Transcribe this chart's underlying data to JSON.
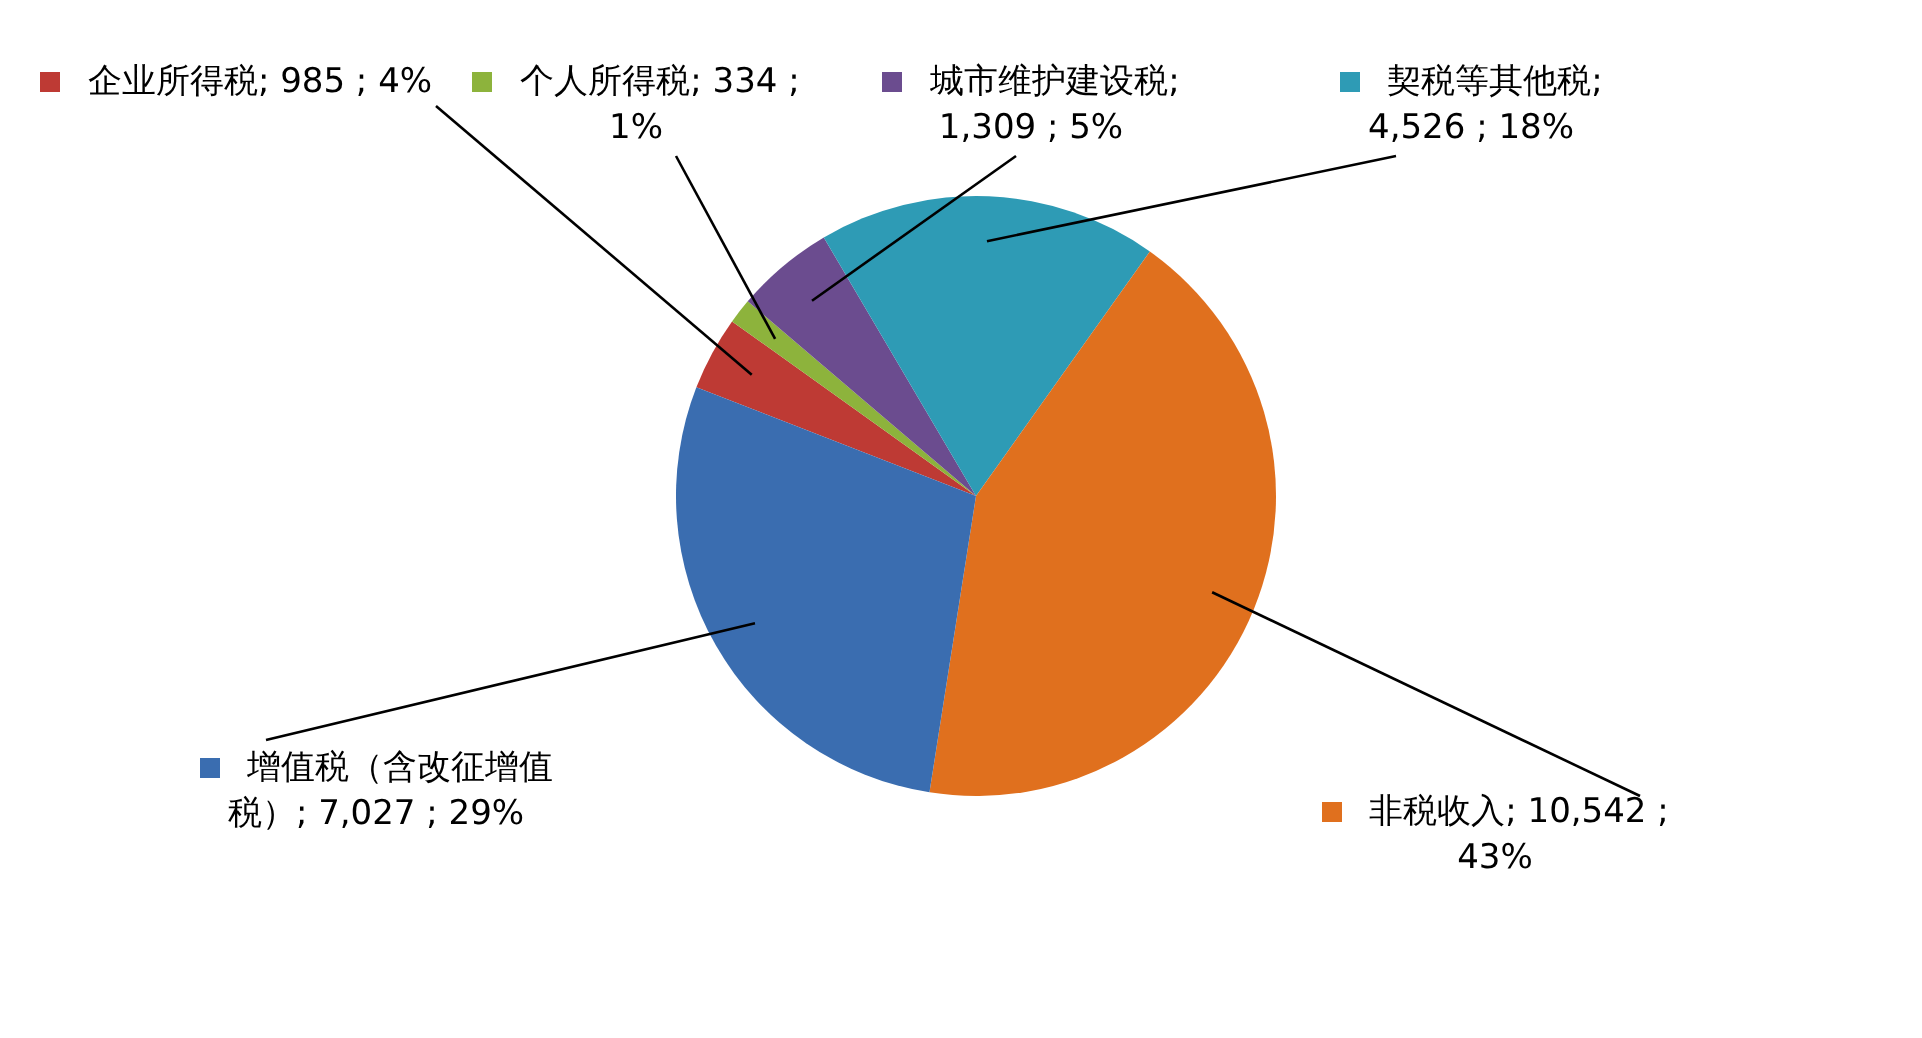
{
  "chart_data": {
    "type": "pie",
    "categories": [
      "企业所得税",
      "个人所得税",
      "城市维护建设税",
      "契税等其他税",
      "非税收入",
      "增值税（含改征增值税）"
    ],
    "values": [
      985,
      334,
      1309,
      4526,
      10542,
      7027
    ],
    "value_labels": [
      "; 985 ; 4%",
      "; 334 ; 1%",
      "; 1,309 ; 5%",
      "; 4,526 ; 18%",
      "; 10,542 ; 43%",
      "; 7,027 ; 29%"
    ],
    "colors": [
      "#be3a34",
      "#8db33c",
      "#6b4c8f",
      "#2e9bb5",
      "#e0701e",
      "#3a6db0"
    ],
    "legend": "left"
  }
}
